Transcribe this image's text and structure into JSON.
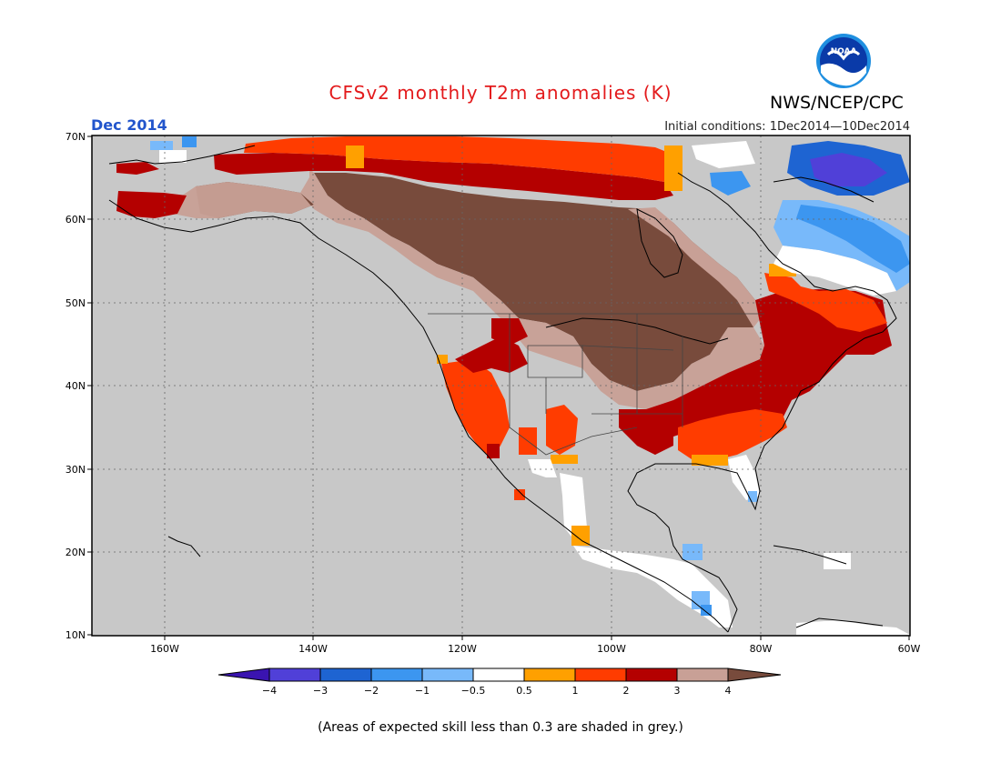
{
  "header": {
    "title": "CFSv2 monthly T2m anomalies (K)",
    "agency": "NWS/NCEP/CPC",
    "logo_text": "NOAA",
    "month": "Dec 2014",
    "initial_conditions": "Initial conditions: 1Dec2014—10Dec2014"
  },
  "map": {
    "lat_labels": [
      "70N",
      "60N",
      "50N",
      "40N",
      "30N",
      "20N",
      "10N"
    ],
    "lon_labels": [
      "160W",
      "140W",
      "120W",
      "100W",
      "80W",
      "60W"
    ],
    "background_color": "#c8c8c8"
  },
  "legend": {
    "labels": [
      "−4",
      "−3",
      "−2",
      "−1",
      "−0.5",
      "0.5",
      "1",
      "2",
      "3",
      "4"
    ],
    "colors": [
      "#3a14b0",
      "#5040d8",
      "#1e64d2",
      "#3c96f0",
      "#78b9fa",
      "#ffffff",
      "#ffa000",
      "#ff3c00",
      "#b40000",
      "#c8a096",
      "#784b3c"
    ]
  },
  "footer": {
    "note": "(Areas of expected skill less than 0.3 are shaded in grey.)"
  }
}
